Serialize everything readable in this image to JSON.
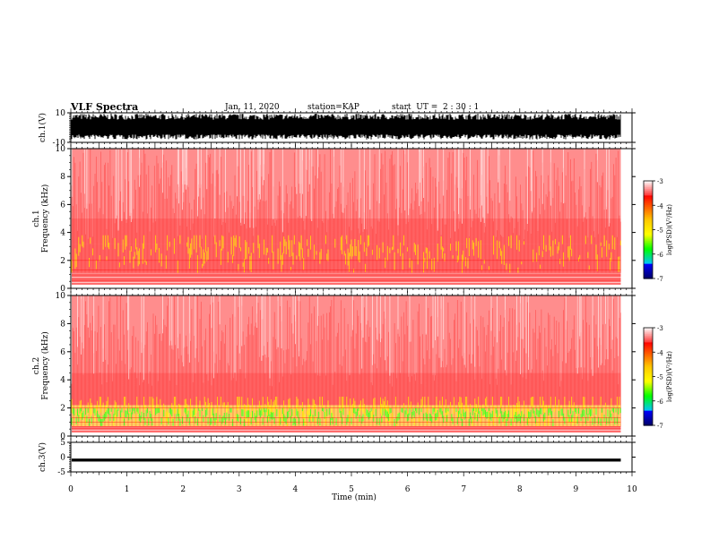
{
  "header": {
    "title": "VLF Spectra",
    "date": "Jan. 11, 2020",
    "station": "station=KAP",
    "start_ut": "start  UT =  2 : 30 : 1"
  },
  "chart_data": [
    {
      "type": "line",
      "panel": "ch1-waveform",
      "ylabel": "ch.1(V)",
      "ylim": [
        -10,
        10
      ],
      "yticks": [
        10,
        -10
      ],
      "xlim": [
        0,
        10
      ],
      "data_end_min": 9.8,
      "description_of_signal": "dense noise filling most of range",
      "envelope_high": 9,
      "envelope_low": -8
    },
    {
      "type": "heatmap",
      "panel": "ch1-spectrogram",
      "ylabel": "ch.1\nFrequency (kHz)",
      "ylim": [
        0,
        10
      ],
      "yticks": [
        0,
        2,
        4,
        6,
        8,
        10
      ],
      "xlim": [
        0,
        10
      ],
      "data_end_min": 9.8,
      "colorbar": {
        "label": "log(PSD)(V²/Hz)",
        "ticks": [
          -3,
          -4,
          -5,
          -6,
          -7
        ],
        "range": [
          -7,
          -3
        ]
      },
      "bands": [
        {
          "f_low": 5.0,
          "f_high": 10.0,
          "level": -3.6
        },
        {
          "f_low": 3.2,
          "f_high": 5.0,
          "level": -3.9
        },
        {
          "f_low": 1.1,
          "f_high": 3.2,
          "level": -4.2
        },
        {
          "f_low": 0.3,
          "f_high": 1.1,
          "level": -3.8
        }
      ]
    },
    {
      "type": "heatmap",
      "panel": "ch2-spectrogram",
      "ylabel": "ch.2\nFrequency (kHz)",
      "ylim": [
        0,
        10
      ],
      "yticks": [
        0,
        2,
        4,
        6,
        8,
        10
      ],
      "xlim": [
        0,
        10
      ],
      "data_end_min": 9.8,
      "colorbar": {
        "label": "log(PSD)(V²/Hz)",
        "ticks": [
          -3,
          -4,
          -5,
          -6,
          -7
        ],
        "range": [
          -7,
          -3
        ]
      },
      "bands": [
        {
          "f_low": 4.5,
          "f_high": 10.0,
          "level": -3.7
        },
        {
          "f_low": 2.2,
          "f_high": 4.5,
          "level": -4.1
        },
        {
          "f_low": 0.7,
          "f_high": 2.2,
          "level": -4.8
        },
        {
          "f_low": 0.3,
          "f_high": 0.7,
          "level": -4.2
        }
      ]
    },
    {
      "type": "line",
      "panel": "ch3-waveform",
      "ylabel": "ch.3(V)",
      "ylim": [
        -5,
        5
      ],
      "yticks": [
        5,
        0,
        -5
      ],
      "xlim": [
        0,
        10
      ],
      "data_end_min": 9.8,
      "envelope_high": -0.5,
      "envelope_low": -1.5
    }
  ],
  "xaxis": {
    "label": "Time (min)",
    "ticks": [
      "0",
      "1",
      "2",
      "3",
      "4",
      "5",
      "6",
      "7",
      "8",
      "9",
      "10"
    ]
  },
  "colors": {
    "cmap": [
      "#000066",
      "#0000ff",
      "#00bfff",
      "#00ff00",
      "#c8ff00",
      "#ffff00",
      "#ff8000",
      "#ff0000",
      "#ff9999",
      "#ffffff"
    ]
  }
}
